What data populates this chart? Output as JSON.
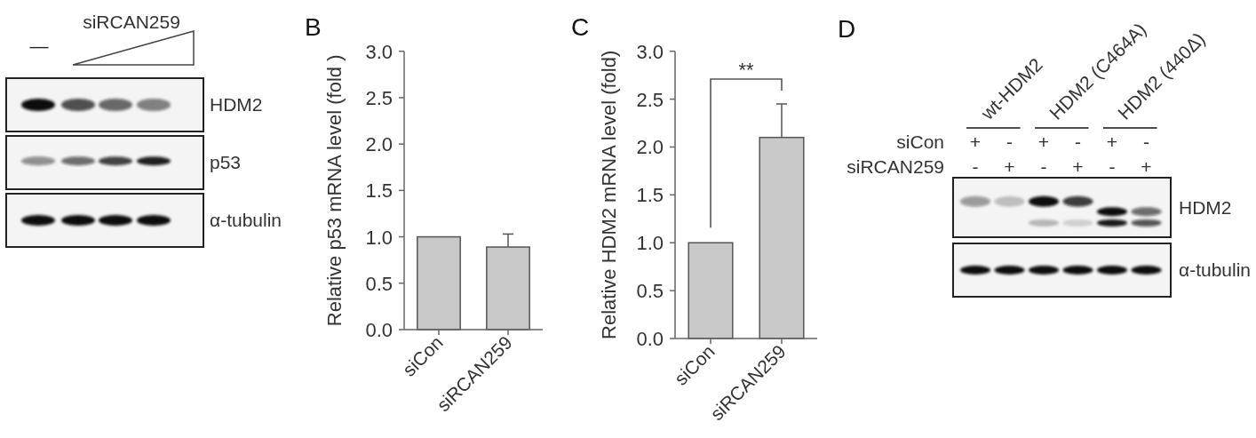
{
  "chart_data": [
    {
      "type": "other",
      "annotations": [
        "—",
        "siRCAN259",
        "HDM2",
        "p53",
        "α-tubulin"
      ]
    },
    {
      "type": "bar",
      "title": "B",
      "ylabel": "Relative p53 mRNA level (fold )",
      "categories": [
        "siCon",
        "siRCAN259"
      ],
      "values": [
        1.0,
        0.89
      ],
      "errors": [
        null,
        [
          0.89,
          1.03
        ]
      ],
      "color": "#c8c8c8",
      "ylim": [
        0,
        3
      ],
      "yticks": [
        {
          "value": 0,
          "label": "0.0"
        },
        {
          "value": 0.5,
          "label": "0.5"
        },
        {
          "value": 1,
          "label": "1.0"
        },
        {
          "value": 1.5,
          "label": "1.5"
        },
        {
          "value": 2,
          "label": "2.0"
        },
        {
          "value": 2.5,
          "label": "2.5"
        },
        {
          "value": 3,
          "label": "3.0"
        }
      ]
    },
    {
      "type": "bar",
      "title": "C",
      "ylabel": "Relative HDM2 mRNA level (fold)",
      "categories": [
        "siCon",
        "siRCAN259"
      ],
      "values": [
        1.0,
        2.1
      ],
      "errors": [
        null,
        [
          2.1,
          2.45
        ]
      ],
      "color": "#c8c8c8",
      "ylim": [
        0,
        3
      ],
      "yticks": [
        {
          "value": 0,
          "label": "0.0"
        },
        {
          "value": 0.5,
          "label": "0.5"
        },
        {
          "value": 1,
          "label": "1.0"
        },
        {
          "value": 1.5,
          "label": "1.5"
        },
        {
          "value": 2,
          "label": "2.0"
        },
        {
          "value": 2.5,
          "label": "2.5"
        },
        {
          "value": 3,
          "label": "3.0"
        }
      ],
      "annotations": [
        "**"
      ]
    },
    {
      "type": "other",
      "title": "D",
      "categories": [
        "wt-HDM2",
        "HDM2 (C464A)",
        "HDM2 (440Δ)"
      ],
      "y_categories": [
        "siCon",
        "siRCAN259"
      ],
      "cell_labels": [
        [
          "+",
          "-",
          "+",
          "-",
          "+",
          "-"
        ],
        [
          "-",
          "+",
          "-",
          "+",
          "-",
          "+"
        ]
      ],
      "annotations": [
        "HDM2",
        "α-tubulin"
      ]
    }
  ]
}
